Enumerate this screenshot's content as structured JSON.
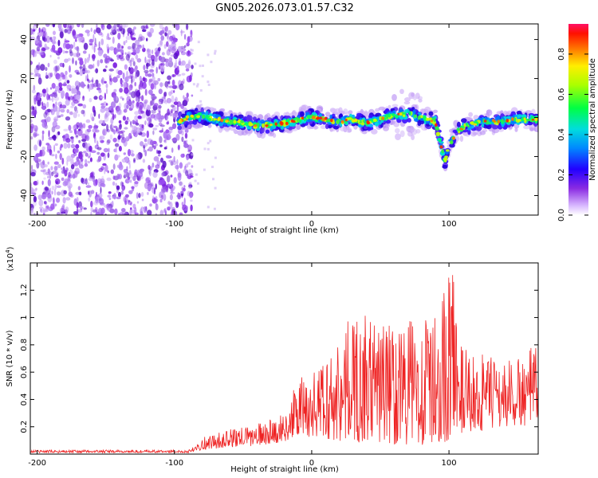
{
  "title": "GN05.2026.073.01.57.C32",
  "chart_data": [
    {
      "type": "heatmap",
      "name": "spectrogram",
      "xlabel": "Height of straight line (km)",
      "ylabel": "Frequency (Hz)",
      "xlim": [
        -205,
        165
      ],
      "ylim": [
        -50,
        48
      ],
      "xticks": [
        -200,
        -100,
        0,
        100
      ],
      "yticks": [
        -40,
        -20,
        0,
        20,
        40
      ],
      "colorbar": {
        "label": "Normalized spectral amplitude",
        "range": [
          0,
          0.95
        ],
        "ticks": [
          0.0,
          0.2,
          0.4,
          0.6,
          0.8
        ]
      },
      "noise_region_x": [
        -200,
        -90
      ],
      "ridge_x": [
        -97,
        -90,
        -80,
        -70,
        -60,
        -50,
        -40,
        -30,
        -20,
        -10,
        0,
        10,
        20,
        30,
        40,
        50,
        60,
        70,
        80,
        90,
        97,
        100,
        105,
        110,
        120,
        130,
        140,
        150,
        160,
        165
      ],
      "ridge_hz": [
        -2,
        0,
        1,
        -1,
        -2,
        -3,
        -4,
        -4,
        -3,
        -1,
        0,
        -1,
        -2,
        -1,
        -3,
        -1,
        1,
        2,
        0,
        -2,
        -22,
        -15,
        -8,
        -5,
        -3,
        -2,
        -2,
        -1,
        -1,
        -1
      ]
    },
    {
      "type": "line",
      "name": "snr",
      "xlabel": "Height of straight line (km)",
      "ylabel": "SNR (10 * v/v)",
      "multiplier": "(x10",
      "multiplier_exp": "4",
      "xlim": [
        -205,
        165
      ],
      "ylim": [
        0,
        1.4
      ],
      "xticks": [
        -200,
        -100,
        0,
        100
      ],
      "yticks": [
        0.2,
        0.4,
        0.6,
        0.8,
        1.0,
        1.2
      ],
      "color": "#ee2222",
      "envelope_x": [
        -205,
        -90,
        -80,
        -60,
        -40,
        -20,
        -10,
        10,
        30,
        50,
        70,
        90,
        100,
        103,
        106,
        110,
        130,
        150,
        165
      ],
      "envelope_upper": [
        0.03,
        0.03,
        0.12,
        0.18,
        0.22,
        0.3,
        0.55,
        0.7,
        1.05,
        0.98,
        1.0,
        1.02,
        1.35,
        1.35,
        0.95,
        0.78,
        0.72,
        0.7,
        0.82
      ],
      "envelope_lower": [
        0.01,
        0.01,
        0.03,
        0.05,
        0.06,
        0.09,
        0.12,
        0.1,
        0.08,
        0.08,
        0.06,
        0.06,
        0.1,
        0.2,
        0.2,
        0.12,
        0.18,
        0.2,
        0.2
      ]
    }
  ]
}
